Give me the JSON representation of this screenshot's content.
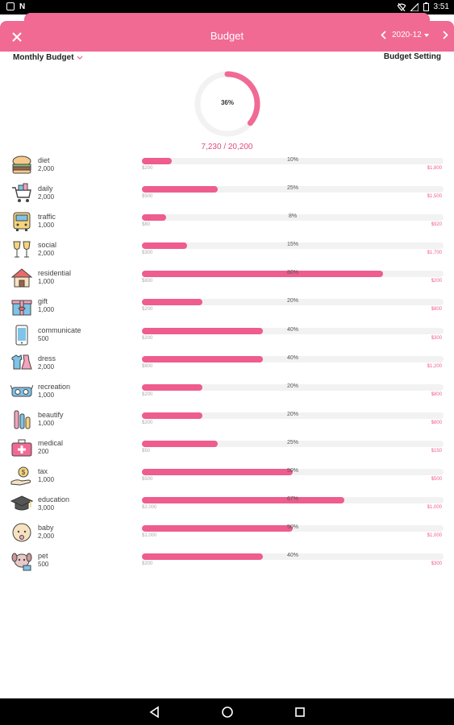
{
  "status_bar": {
    "time": "3:51"
  },
  "header": {
    "title": "Budget",
    "month": "2020-12",
    "close_icon": "close-icon",
    "prev_icon": "chevron-left-icon",
    "next_icon": "chevron-right-icon"
  },
  "subheader": {
    "monthly_budget": "Monthly Budget",
    "budget_setting": "Budget Setting"
  },
  "summary": {
    "percent_label": "36%",
    "percent": 0.36,
    "total": "7,230 / 20,200"
  },
  "colors": {
    "accent": "#f06a94",
    "bar": "#ee5d8d",
    "track": "#f2f2f2"
  },
  "categories": [
    {
      "name": "diet",
      "budget": "2,000",
      "pct_label": "10%",
      "pct": 0.1,
      "spent": "$200",
      "remain": "$1,800",
      "icon": "hamburger-icon"
    },
    {
      "name": "daily",
      "budget": "2,000",
      "pct_label": "25%",
      "pct": 0.25,
      "spent": "$500",
      "remain": "$1,500",
      "icon": "shopping-cart-icon"
    },
    {
      "name": "traffic",
      "budget": "1,000",
      "pct_label": "8%",
      "pct": 0.08,
      "spent": "$80",
      "remain": "$920",
      "icon": "bus-icon"
    },
    {
      "name": "social",
      "budget": "2,000",
      "pct_label": "15%",
      "pct": 0.15,
      "spent": "$300",
      "remain": "$1,700",
      "icon": "wine-glasses-icon"
    },
    {
      "name": "residential",
      "budget": "1,000",
      "pct_label": "80%",
      "pct": 0.8,
      "spent": "$800",
      "remain": "$200",
      "icon": "house-icon"
    },
    {
      "name": "gift",
      "budget": "1,000",
      "pct_label": "20%",
      "pct": 0.2,
      "spent": "$200",
      "remain": "$800",
      "icon": "gift-icon"
    },
    {
      "name": "communicate",
      "budget": "500",
      "pct_label": "40%",
      "pct": 0.4,
      "spent": "$200",
      "remain": "$300",
      "icon": "phone-icon"
    },
    {
      "name": "dress",
      "budget": "2,000",
      "pct_label": "40%",
      "pct": 0.4,
      "spent": "$800",
      "remain": "$1,200",
      "icon": "clothes-icon"
    },
    {
      "name": "recreation",
      "budget": "1,000",
      "pct_label": "20%",
      "pct": 0.2,
      "spent": "$200",
      "remain": "$800",
      "icon": "vr-glasses-icon"
    },
    {
      "name": "beautify",
      "budget": "1,000",
      "pct_label": "20%",
      "pct": 0.2,
      "spent": "$200",
      "remain": "$800",
      "icon": "makeup-brush-icon"
    },
    {
      "name": "medical",
      "budget": "200",
      "pct_label": "25%",
      "pct": 0.25,
      "spent": "$50",
      "remain": "$150",
      "icon": "first-aid-kit-icon"
    },
    {
      "name": "tax",
      "budget": "1,000",
      "pct_label": "50%",
      "pct": 0.5,
      "spent": "$500",
      "remain": "$500",
      "icon": "coin-hand-icon"
    },
    {
      "name": "education",
      "budget": "3,000",
      "pct_label": "67%",
      "pct": 0.67,
      "spent": "$2,000",
      "remain": "$1,000",
      "icon": "graduation-cap-icon"
    },
    {
      "name": "baby",
      "budget": "2,000",
      "pct_label": "50%",
      "pct": 0.5,
      "spent": "$1,000",
      "remain": "$1,000",
      "icon": "baby-icon"
    },
    {
      "name": "pet",
      "budget": "500",
      "pct_label": "40%",
      "pct": 0.4,
      "spent": "$200",
      "remain": "$300",
      "icon": "dog-icon"
    }
  ]
}
